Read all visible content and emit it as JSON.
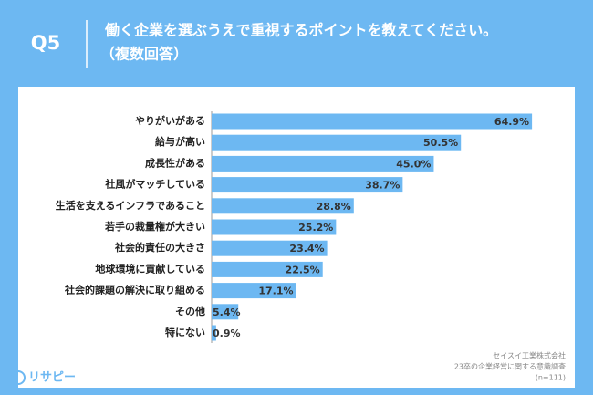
{
  "header": {
    "question": "Q5",
    "title": "働く企業を選ぶうえで重視するポイントを教えてください。",
    "subtitle": "（複数回答）"
  },
  "chart_data": {
    "type": "bar",
    "orientation": "horizontal",
    "color": "#6db8f2",
    "categories": [
      "やりがいがある",
      "給与が高い",
      "成長性がある",
      "社風がマッチしている",
      "生活を支えるインフラであること",
      "若手の裁量権が大きい",
      "社会的責任の大きさ",
      "地球環境に貢献している",
      "社会的課題の解決に取り組める",
      "その他",
      "特にない"
    ],
    "values": [
      64.9,
      50.5,
      45.0,
      38.7,
      28.8,
      25.2,
      23.4,
      22.5,
      17.1,
      5.4,
      0.9
    ],
    "value_labels": [
      "64.9%",
      "50.5%",
      "45.0%",
      "38.7%",
      "28.8%",
      "25.2%",
      "23.4%",
      "22.5%",
      "17.1%",
      "5.4%",
      "0.9%"
    ]
  },
  "source": {
    "company": "セイスイ工業株式会社",
    "survey": "23卒の企業経営に関する意識調査",
    "sample": "(n=111)"
  },
  "logo": "リサピー"
}
